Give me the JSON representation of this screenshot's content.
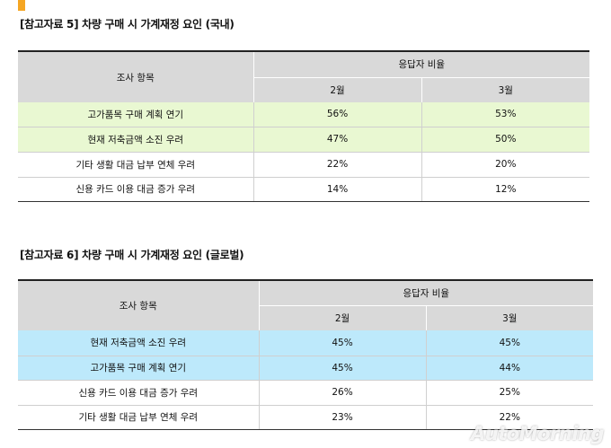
{
  "section1": {
    "title": "[참고자료 5] 차량 구매 시 가계재정 요인 (국내)",
    "header": {
      "item": "조사 항목",
      "group": "응답자 비율",
      "month_a": "2월",
      "month_b": "3월"
    },
    "rows": [
      {
        "item": "고가품목 구매 계획 연기",
        "a": "56%",
        "b": "53%",
        "highlight": "#e9f8d2"
      },
      {
        "item": "현재 저축금액 소진 우려",
        "a": "47%",
        "b": "50%",
        "highlight": "#e9f8d2"
      },
      {
        "item": "기타 생활 대금 납부 연체 우려",
        "a": "22%",
        "b": "20%",
        "highlight": null
      },
      {
        "item": "신용 카드 이용 대금 증가 우려",
        "a": "14%",
        "b": "12%",
        "highlight": null
      }
    ]
  },
  "section2": {
    "title": "[참고자료 6] 차량 구매 시 가계재정 요인 (글로벌)",
    "header": {
      "item": "조사 항목",
      "group": "응답자 비율",
      "month_a": "2월",
      "month_b": "3월"
    },
    "rows": [
      {
        "item": "현재 저축금액 소진 우려",
        "a": "45%",
        "b": "45%",
        "highlight": "#bde9fb"
      },
      {
        "item": "고가품목 구매 계획 연기",
        "a": "45%",
        "b": "44%",
        "highlight": "#bde9fb"
      },
      {
        "item": "신용 카드 이용 대금 증가 우려",
        "a": "26%",
        "b": "25%",
        "highlight": null
      },
      {
        "item": "기타 생활 대금 납부 연체 우려",
        "a": "23%",
        "b": "22%",
        "highlight": null
      }
    ]
  },
  "watermark": "AutoMorning",
  "colors": {
    "accent": "#f5a623",
    "header_bg": "#d9d9d9"
  }
}
